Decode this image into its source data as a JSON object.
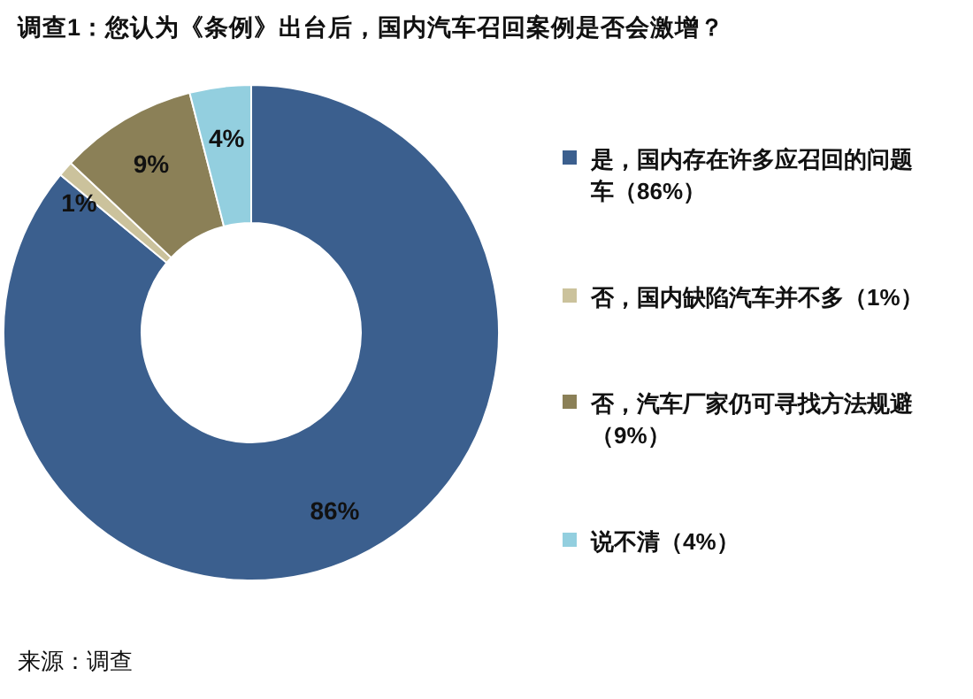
{
  "chart_data": {
    "type": "donut",
    "title": "调查1：您认为《条例》出台后，国内汽车召回案例是否会激增？",
    "categories": [
      "是，国内存在许多应召回的问题车（86%）",
      "否，国内缺陷汽车并不多（1%）",
      "否，汽车厂家仍可寻找方法规避（9%）",
      "说不清（4%）"
    ],
    "values": [
      86,
      1,
      9,
      4
    ],
    "colors": [
      "#3b5f8e",
      "#cbc29c",
      "#8b8057",
      "#93cfdf"
    ],
    "value_labels": [
      "86%",
      "1%",
      "9%",
      "4%"
    ],
    "legend": "right",
    "annotations": [
      "来源：调查"
    ]
  }
}
